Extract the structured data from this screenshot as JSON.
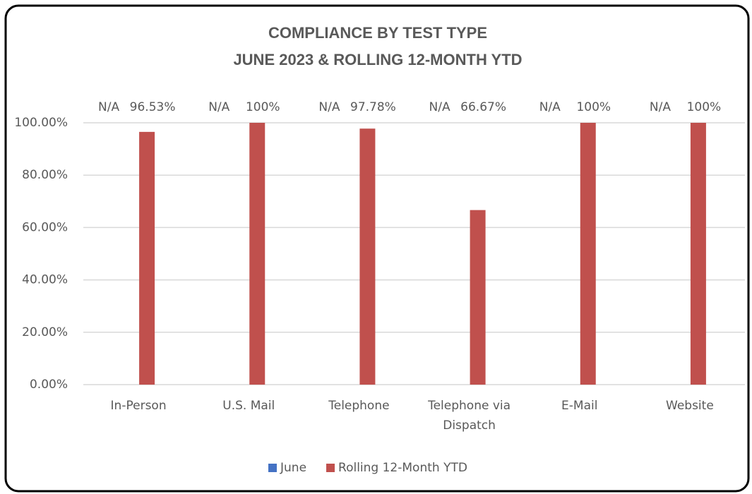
{
  "chart_data": {
    "type": "bar",
    "title": "COMPLIANCE BY TEST TYPE",
    "subtitle": "JUNE 2023 & ROLLING 12-MONTH YTD",
    "categories": [
      "In-Person",
      "U.S. Mail",
      "Telephone",
      "Telephone via Dispatch",
      "E-Mail",
      "Website"
    ],
    "series": [
      {
        "name": "June",
        "color": "#4472c4",
        "values": [
          null,
          null,
          null,
          null,
          null,
          null
        ],
        "value_labels": [
          "N/A",
          "N/A",
          "N/A",
          "N/A",
          "N/A",
          "N/A"
        ]
      },
      {
        "name": "Rolling 12-Month YTD",
        "color": "#c0504d",
        "values": [
          96.53,
          100,
          97.78,
          66.67,
          100,
          100
        ],
        "value_labels": [
          "96.53%",
          "100%",
          "97.78%",
          "66.67%",
          "100%",
          "100%"
        ]
      }
    ],
    "ylim": [
      0,
      100
    ],
    "yticks": [
      {
        "value": 0,
        "label": "0.00%"
      },
      {
        "value": 20,
        "label": "20.00%"
      },
      {
        "value": 40,
        "label": "40.00%"
      },
      {
        "value": 60,
        "label": "60.00%"
      },
      {
        "value": 80,
        "label": "80.00%"
      },
      {
        "value": 100,
        "label": "100.00%"
      }
    ],
    "grid": true,
    "legend": "bottom"
  }
}
